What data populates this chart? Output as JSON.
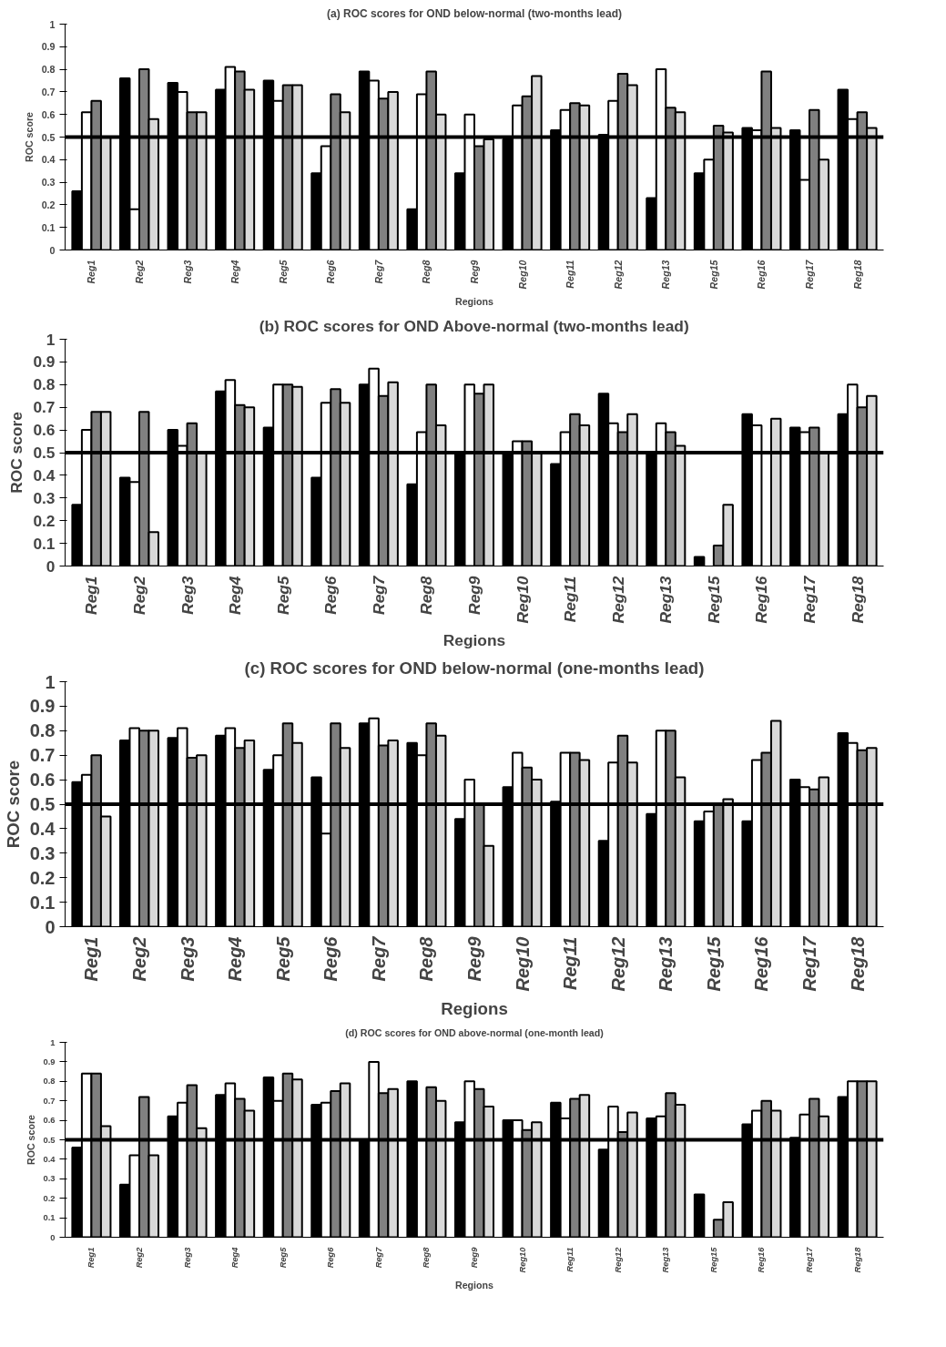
{
  "chart_data": [
    {
      "type": "bar",
      "title": "(a) ROC scores for OND below-normal (two-months lead)",
      "xlabel": "Regions",
      "ylabel": "ROC score",
      "categories": [
        "Reg1",
        "Reg2",
        "Reg3",
        "Reg4",
        "Reg5",
        "Reg6",
        "Reg7",
        "Reg8",
        "Reg9",
        "Reg10",
        "Reg11",
        "Reg12",
        "Reg13",
        "Reg15",
        "Reg16",
        "Reg17",
        "Reg18"
      ],
      "series": [
        {
          "color": "#000000",
          "values": [
            0.26,
            0.76,
            0.74,
            0.71,
            0.75,
            0.34,
            0.79,
            0.18,
            0.34,
            0.49,
            0.53,
            0.51,
            0.23,
            0.34,
            0.54,
            0.53,
            0.71
          ]
        },
        {
          "color": "#ffffff",
          "values": [
            0.61,
            0.18,
            0.7,
            0.81,
            0.66,
            0.46,
            0.75,
            0.69,
            0.6,
            0.64,
            0.62,
            0.66,
            0.8,
            0.4,
            0.53,
            0.31,
            0.58
          ]
        },
        {
          "color": "#808080",
          "values": [
            0.66,
            0.8,
            0.61,
            0.79,
            0.73,
            0.69,
            0.67,
            0.79,
            0.46,
            0.68,
            0.65,
            0.78,
            0.63,
            0.55,
            0.79,
            0.62,
            0.61
          ]
        },
        {
          "color": "#d9d9d9",
          "values": [
            0.5,
            0.58,
            0.61,
            0.71,
            0.73,
            0.61,
            0.7,
            0.6,
            0.49,
            0.77,
            0.64,
            0.73,
            0.61,
            0.52,
            0.54,
            0.4,
            0.54
          ]
        }
      ],
      "ylim": [
        0,
        1
      ],
      "yticks": [
        0,
        0.1,
        0.2,
        0.3,
        0.4,
        0.5,
        0.6,
        0.7,
        0.8,
        0.9,
        1
      ],
      "ref_lines": [
        {
          "axis": "y",
          "value": 0.5,
          "color": "#000000"
        }
      ],
      "grid": false
    },
    {
      "type": "bar",
      "title": "(b) ROC scores for OND Above-normal (two-months lead)",
      "xlabel": "Regions",
      "ylabel": "ROC score",
      "categories": [
        "Reg1",
        "Reg2",
        "Reg3",
        "Reg4",
        "Reg5",
        "Reg6",
        "Reg7",
        "Reg8",
        "Reg9",
        "Reg10",
        "Reg11",
        "Reg12",
        "Reg13",
        "Reg15",
        "Reg16",
        "Reg17",
        "Reg18"
      ],
      "series": [
        {
          "color": "#000000",
          "values": [
            0.27,
            0.39,
            0.6,
            0.77,
            0.61,
            0.39,
            0.8,
            0.36,
            0.5,
            0.5,
            0.45,
            0.76,
            0.5,
            0.04,
            0.67,
            0.61,
            0.67
          ]
        },
        {
          "color": "#ffffff",
          "values": [
            0.6,
            0.37,
            0.53,
            0.82,
            0.8,
            0.72,
            0.87,
            0.59,
            0.8,
            0.55,
            0.59,
            0.63,
            0.63,
            null,
            0.62,
            0.59,
            0.8
          ]
        },
        {
          "color": "#808080",
          "values": [
            0.68,
            0.68,
            0.63,
            0.71,
            0.8,
            0.78,
            0.75,
            0.8,
            0.76,
            0.55,
            0.67,
            0.59,
            0.59,
            0.09,
            null,
            0.61,
            0.7
          ]
        },
        {
          "color": "#d9d9d9",
          "values": [
            0.68,
            0.15,
            0.5,
            0.7,
            0.79,
            0.72,
            0.81,
            0.62,
            0.8,
            0.5,
            0.62,
            0.67,
            0.53,
            0.27,
            0.65,
            0.5,
            0.75
          ]
        }
      ],
      "ylim": [
        0,
        1
      ],
      "yticks": [
        0,
        0.1,
        0.2,
        0.3,
        0.4,
        0.5,
        0.6,
        0.7,
        0.8,
        0.9,
        1
      ],
      "ref_lines": [
        {
          "axis": "y",
          "value": 0.5,
          "color": "#000000"
        }
      ],
      "grid": false
    },
    {
      "type": "bar",
      "title": "(c) ROC scores for OND below-normal (one-months lead)",
      "xlabel": "Regions",
      "ylabel": "ROC score",
      "categories": [
        "Reg1",
        "Reg2",
        "Reg3",
        "Reg4",
        "Reg5",
        "Reg6",
        "Reg7",
        "Reg8",
        "Reg9",
        "Reg10",
        "Reg11",
        "Reg12",
        "Reg13",
        "Reg15",
        "Reg16",
        "Reg17",
        "Reg18"
      ],
      "series": [
        {
          "color": "#000000",
          "values": [
            0.59,
            0.76,
            0.77,
            0.78,
            0.64,
            0.61,
            0.83,
            0.75,
            0.44,
            0.57,
            0.51,
            0.35,
            0.46,
            0.43,
            0.43,
            0.6,
            0.79
          ]
        },
        {
          "color": "#ffffff",
          "values": [
            0.62,
            0.81,
            0.81,
            0.81,
            0.7,
            0.38,
            0.85,
            0.7,
            0.6,
            0.71,
            0.71,
            0.67,
            0.8,
            0.47,
            0.68,
            0.57,
            0.75
          ]
        },
        {
          "color": "#808080",
          "values": [
            0.7,
            0.8,
            0.69,
            0.73,
            0.83,
            0.83,
            0.74,
            0.83,
            0.5,
            0.65,
            0.71,
            0.78,
            0.8,
            0.5,
            0.71,
            0.56,
            0.72
          ]
        },
        {
          "color": "#d9d9d9",
          "values": [
            0.45,
            0.8,
            0.7,
            0.76,
            0.75,
            0.73,
            0.76,
            0.78,
            0.33,
            0.6,
            0.68,
            0.67,
            0.61,
            0.52,
            0.84,
            0.61,
            0.73
          ]
        }
      ],
      "ylim": [
        0,
        1
      ],
      "yticks": [
        0,
        0.1,
        0.2,
        0.3,
        0.4,
        0.5,
        0.6,
        0.7,
        0.8,
        0.9,
        1
      ],
      "ref_lines": [
        {
          "axis": "y",
          "value": 0.5,
          "color": "#000000"
        }
      ],
      "grid": false
    },
    {
      "type": "bar",
      "title": "(d) ROC scores for OND above-normal (one-month lead)",
      "xlabel": "Regions",
      "ylabel": "ROC score",
      "categories": [
        "Reg1",
        "Reg2",
        "Reg3",
        "Reg4",
        "Reg5",
        "Reg6",
        "Reg7",
        "Reg8",
        "Reg9",
        "Reg10",
        "Reg11",
        "Reg12",
        "Reg13",
        "Reg15",
        "Reg16",
        "Reg17",
        "Reg18"
      ],
      "series": [
        {
          "color": "#000000",
          "values": [
            0.46,
            0.27,
            0.62,
            0.73,
            0.82,
            0.68,
            0.5,
            0.8,
            0.59,
            0.6,
            0.69,
            0.45,
            0.61,
            0.22,
            0.58,
            0.51,
            0.72
          ]
        },
        {
          "color": "#ffffff",
          "values": [
            0.84,
            0.42,
            0.69,
            0.79,
            0.7,
            0.69,
            0.9,
            0.5,
            0.8,
            0.6,
            0.61,
            0.67,
            0.62,
            null,
            0.65,
            0.63,
            0.8
          ]
        },
        {
          "color": "#808080",
          "values": [
            0.84,
            0.72,
            0.78,
            0.71,
            0.84,
            0.75,
            0.74,
            0.77,
            0.76,
            0.55,
            0.71,
            0.54,
            0.74,
            0.09,
            0.7,
            0.71,
            0.8
          ]
        },
        {
          "color": "#d9d9d9",
          "values": [
            0.57,
            0.42,
            0.56,
            0.65,
            0.81,
            0.79,
            0.76,
            0.7,
            0.67,
            0.59,
            0.73,
            0.64,
            0.68,
            0.18,
            0.65,
            0.62,
            0.8
          ]
        }
      ],
      "ylim": [
        0,
        1
      ],
      "yticks": [
        0,
        0.1,
        0.2,
        0.3,
        0.4,
        0.5,
        0.6,
        0.7,
        0.8,
        0.9,
        1
      ],
      "ref_lines": [
        {
          "axis": "y",
          "value": 0.5,
          "color": "#000000"
        }
      ],
      "grid": false
    }
  ]
}
